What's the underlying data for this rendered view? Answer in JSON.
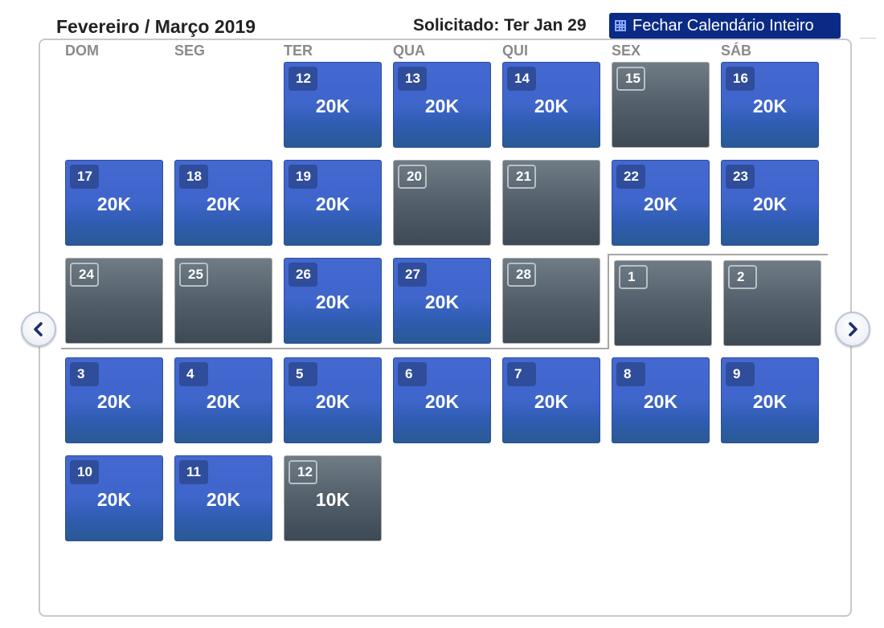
{
  "header": {
    "title": "Fevereiro / Março 2019",
    "requested": "Solicitado: Ter Jan 29",
    "close_button": "Fechar Calendário Inteiro"
  },
  "weekdays": [
    "DOM",
    "SEG",
    "TER",
    "QUA",
    "QUI",
    "SEX",
    "SÁB"
  ],
  "weeks": [
    [
      null,
      null,
      {
        "day": "12",
        "price": "20K",
        "available": true
      },
      {
        "day": "13",
        "price": "20K",
        "available": true
      },
      {
        "day": "14",
        "price": "20K",
        "available": true
      },
      {
        "day": "15",
        "price": "",
        "available": false
      },
      {
        "day": "16",
        "price": "20K",
        "available": true
      }
    ],
    [
      {
        "day": "17",
        "price": "20K",
        "available": true
      },
      {
        "day": "18",
        "price": "20K",
        "available": true
      },
      {
        "day": "19",
        "price": "20K",
        "available": true
      },
      {
        "day": "20",
        "price": "",
        "available": false
      },
      {
        "day": "21",
        "price": "",
        "available": false
      },
      {
        "day": "22",
        "price": "20K",
        "available": true
      },
      {
        "day": "23",
        "price": "20K",
        "available": true
      }
    ],
    [
      {
        "day": "24",
        "price": "",
        "available": false
      },
      {
        "day": "25",
        "price": "",
        "available": false
      },
      {
        "day": "26",
        "price": "20K",
        "available": true
      },
      {
        "day": "27",
        "price": "20K",
        "available": true
      },
      {
        "day": "28",
        "price": "",
        "available": false
      },
      {
        "day": "1",
        "price": "",
        "available": false
      },
      {
        "day": "2",
        "price": "",
        "available": false
      }
    ],
    [
      {
        "day": "3",
        "price": "20K",
        "available": true
      },
      {
        "day": "4",
        "price": "20K",
        "available": true
      },
      {
        "day": "5",
        "price": "20K",
        "available": true
      },
      {
        "day": "6",
        "price": "20K",
        "available": true
      },
      {
        "day": "7",
        "price": "20K",
        "available": true
      },
      {
        "day": "8",
        "price": "20K",
        "available": true
      },
      {
        "day": "9",
        "price": "20K",
        "available": true
      }
    ],
    [
      {
        "day": "10",
        "price": "20K",
        "available": true
      },
      {
        "day": "11",
        "price": "20K",
        "available": true
      },
      {
        "day": "12",
        "price": "10K",
        "available": false
      },
      null,
      null,
      null,
      null
    ]
  ],
  "nav": {
    "prev_icon": "chevron-left-icon",
    "next_icon": "chevron-right-icon"
  },
  "colors": {
    "accent": "#0a2a86",
    "available": "#3f66cc",
    "unavailable": "#535f6a"
  }
}
